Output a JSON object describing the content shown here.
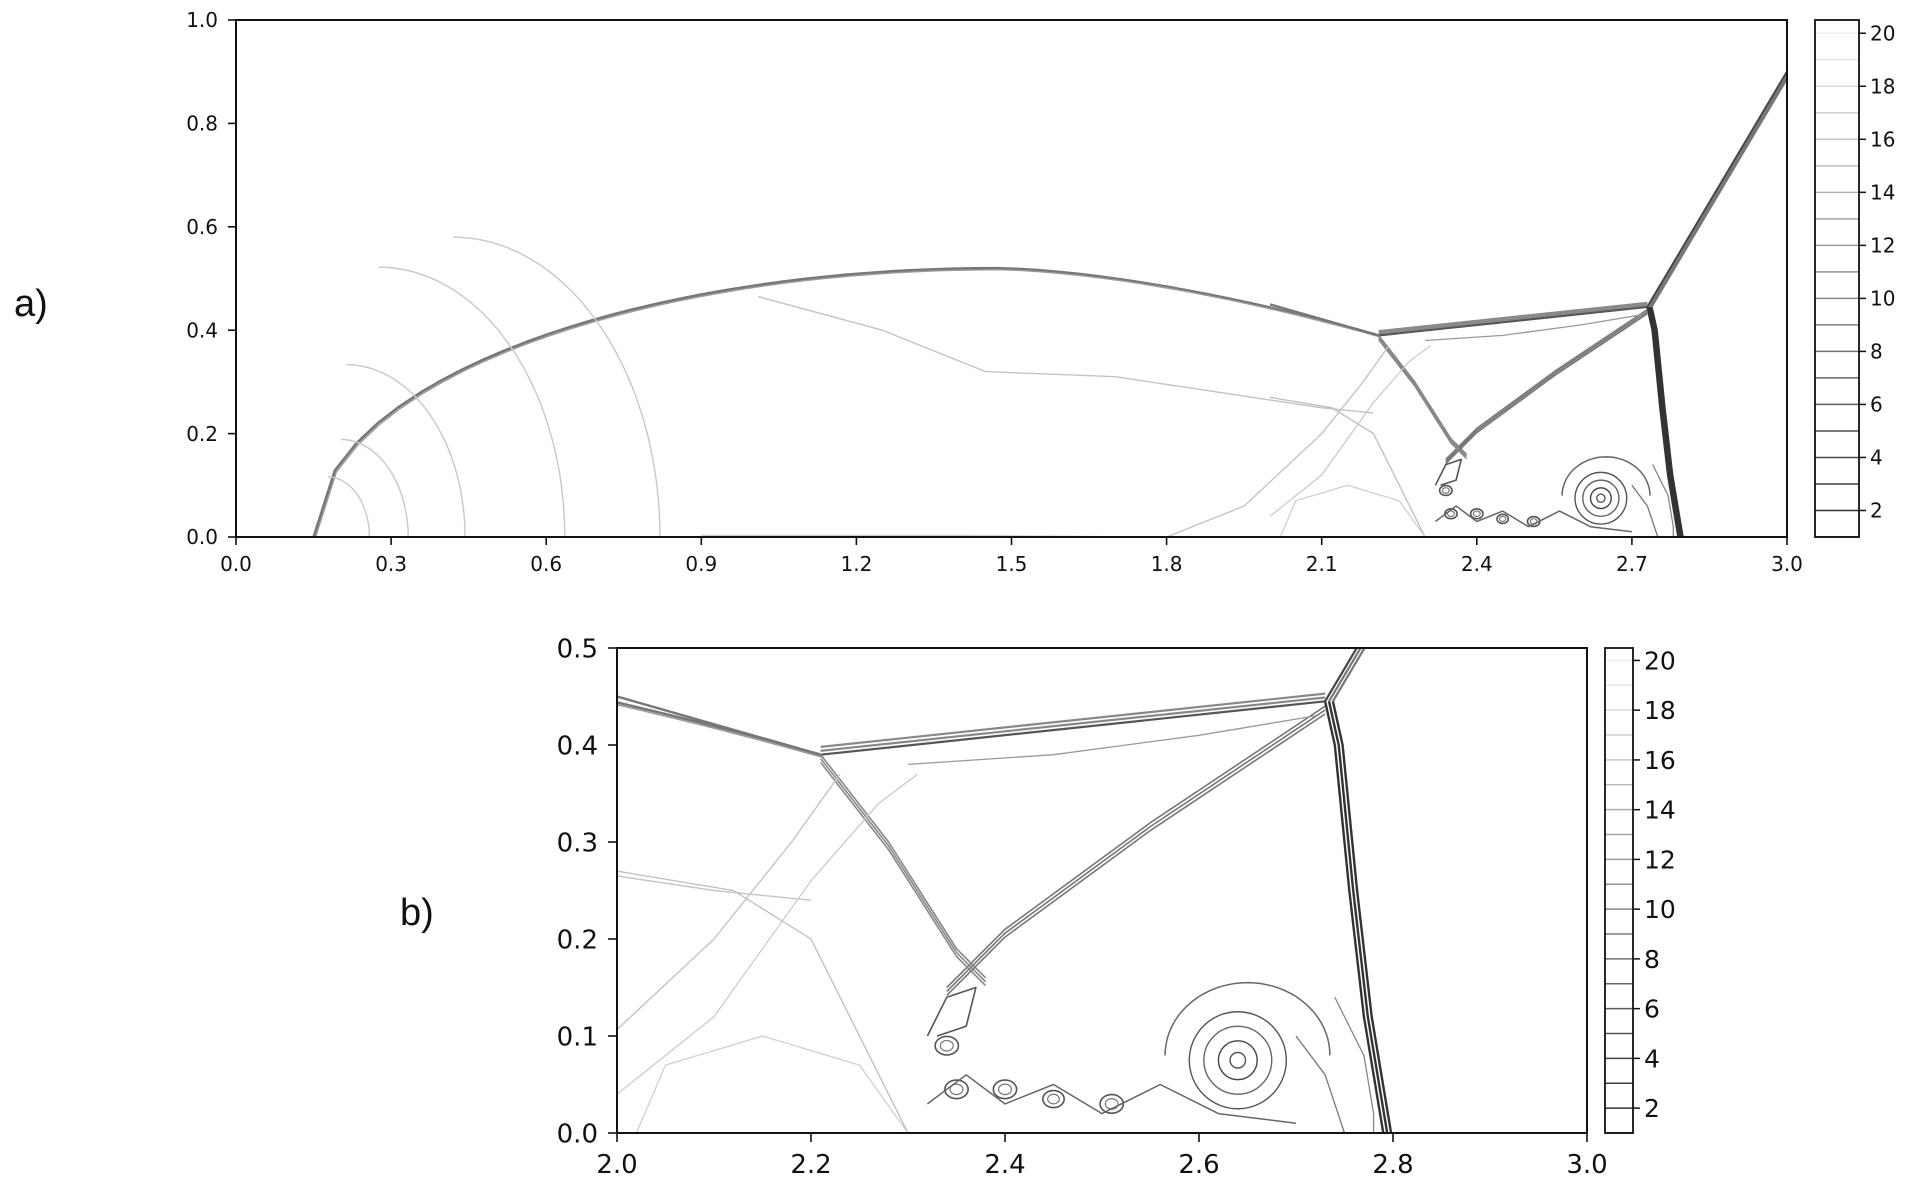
{
  "chart_data": [
    {
      "panel_label": "a)",
      "type": "contour",
      "title": "",
      "xlabel": "",
      "ylabel": "",
      "xlim": [
        0.0,
        3.0
      ],
      "ylim": [
        0.0,
        1.0
      ],
      "xticks": [
        "0.0",
        "0.3",
        "0.6",
        "0.9",
        "1.2",
        "1.5",
        "1.8",
        "2.1",
        "2.4",
        "2.7",
        "3.0"
      ],
      "yticks": [
        "0.0",
        "0.2",
        "0.4",
        "0.6",
        "0.8",
        "1.0"
      ],
      "colorbar": {
        "ticks": [
          "2",
          "4",
          "6",
          "8",
          "10",
          "12",
          "14",
          "16",
          "18",
          "20"
        ],
        "range": [
          1,
          20.5
        ],
        "levels": 20
      },
      "colormap": "grays",
      "grid": false
    },
    {
      "panel_label": "b)",
      "type": "contour",
      "title": "",
      "xlabel": "",
      "ylabel": "",
      "xlim": [
        2.0,
        3.0
      ],
      "ylim": [
        0.0,
        0.5
      ],
      "xticks": [
        "2.0",
        "2.2",
        "2.4",
        "2.6",
        "2.8",
        "3.0"
      ],
      "yticks": [
        "0.0",
        "0.1",
        "0.2",
        "0.3",
        "0.4",
        "0.5"
      ],
      "colorbar": {
        "ticks": [
          "2",
          "4",
          "6",
          "8",
          "10",
          "12",
          "14",
          "16",
          "18",
          "20"
        ],
        "range": [
          1,
          20.5
        ],
        "levels": 20
      },
      "colormap": "grays",
      "grid": false
    }
  ]
}
